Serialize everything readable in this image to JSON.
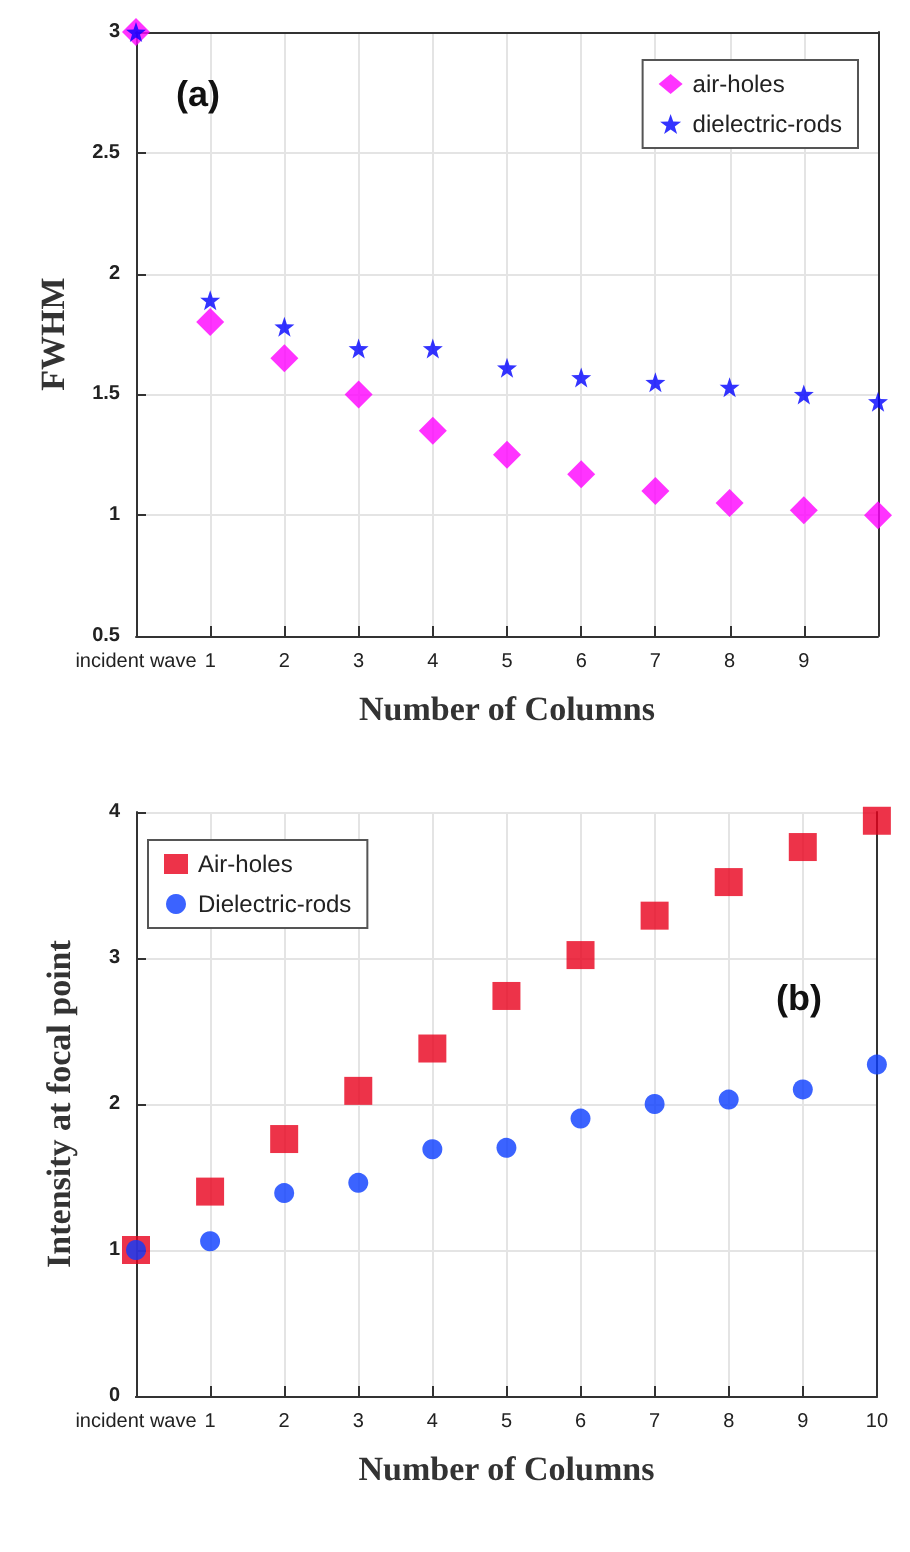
{
  "chart_data": [
    {
      "type": "scatter",
      "xlabel": "Number of Columns",
      "ylabel": "FWHM",
      "annotations": [
        "(a)"
      ],
      "categories": [
        "incident wave",
        "1",
        "2",
        "3",
        "4",
        "5",
        "6",
        "7",
        "8",
        "9",
        null
      ],
      "ylim": [
        0.5,
        3
      ],
      "yticks": [
        0.5,
        1,
        1.5,
        2,
        2.5,
        3
      ],
      "grid": true,
      "legend": "top right",
      "series": [
        {
          "name": "air-holes",
          "color": "#ff00ff",
          "marker": "diamond",
          "values": [
            3.0,
            1.8,
            1.65,
            1.5,
            1.35,
            1.25,
            1.17,
            1.1,
            1.05,
            1.02,
            1.0
          ]
        },
        {
          "name": "dielectric-rods",
          "color": "#0000ff",
          "marker": "star",
          "values": [
            3.0,
            1.89,
            1.78,
            1.69,
            1.69,
            1.61,
            1.57,
            1.55,
            1.53,
            1.5,
            1.47
          ]
        }
      ]
    },
    {
      "type": "scatter",
      "xlabel": "Number of Columns",
      "ylabel": "Intensity at focal point",
      "annotations": [
        "(b)"
      ],
      "categories": [
        "incident wave",
        "1",
        "2",
        "3",
        "4",
        "5",
        "6",
        "7",
        "8",
        "9",
        "10"
      ],
      "ylim": [
        0,
        4
      ],
      "yticks": [
        0,
        1,
        2,
        3,
        4
      ],
      "grid": true,
      "legend": "top left",
      "series": [
        {
          "name": "Air-holes",
          "color": "#e8001c",
          "marker": "square",
          "values": [
            1.0,
            1.4,
            1.76,
            2.09,
            2.38,
            2.74,
            3.02,
            3.29,
            3.52,
            3.76,
            3.94
          ]
        },
        {
          "name": "Dielectric-rods",
          "color": "#0a3cff",
          "marker": "circle",
          "values": [
            1.0,
            1.06,
            1.39,
            1.46,
            1.69,
            1.7,
            1.9,
            2.0,
            2.03,
            2.1,
            2.27
          ]
        }
      ]
    }
  ]
}
